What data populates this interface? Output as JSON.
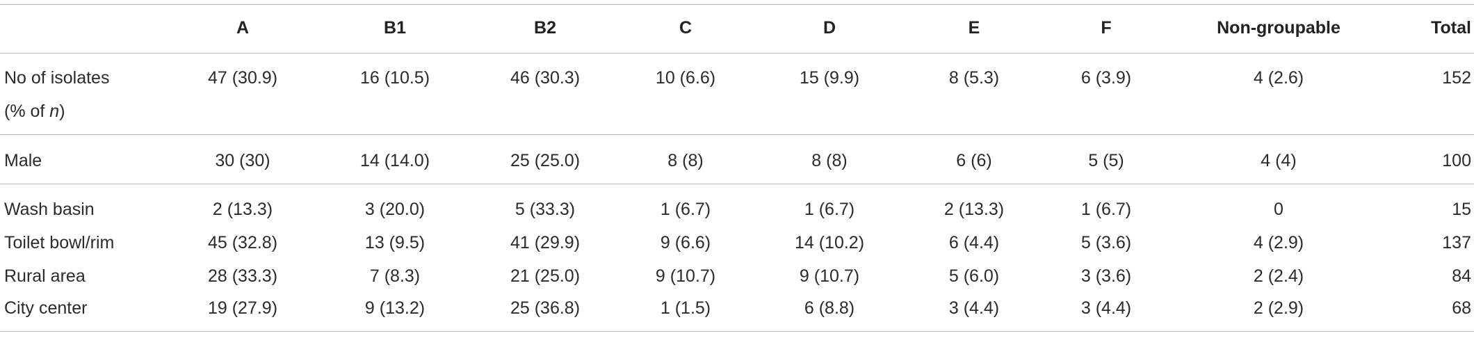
{
  "table": {
    "header": [
      "A",
      "B1",
      "B2",
      "C",
      "D",
      "E",
      "F",
      "Non-groupable",
      "Total"
    ],
    "rows": [
      {
        "label": [
          "No of isolates",
          "(% of ",
          "n",
          ")"
        ],
        "cells": [
          "47 (30.9)",
          "16 (10.5)",
          "46 (30.3)",
          "10 (6.6)",
          "15 (9.9)",
          "8 (5.3)",
          "6 (3.9)",
          "4 (2.6)",
          "152"
        ]
      },
      {
        "label": [
          "Male"
        ],
        "cells": [
          "30 (30)",
          "14 (14.0)",
          "25 (25.0)",
          "8 (8)",
          "8 (8)",
          "6 (6)",
          "5 (5)",
          "4 (4)",
          "100"
        ]
      },
      {
        "label": [
          "Wash basin"
        ],
        "cells": [
          "2 (13.3)",
          "3 (20.0)",
          "5 (33.3)",
          "1 (6.7)",
          "1 (6.7)",
          "2 (13.3)",
          "1 (6.7)",
          "0",
          "15"
        ]
      },
      {
        "label": [
          "Toilet bowl/rim"
        ],
        "cells": [
          "45 (32.8)",
          "13 (9.5)",
          "41 (29.9)",
          "9 (6.6)",
          "14 (10.2)",
          "6 (4.4)",
          "5 (3.6)",
          "4 (2.9)",
          "137"
        ]
      },
      {
        "label": [
          "Rural area"
        ],
        "cells": [
          "28 (33.3)",
          "7 (8.3)",
          "21 (25.0)",
          "9 (10.7)",
          "9 (10.7)",
          "5 (6.0)",
          "3 (3.6)",
          "2 (2.4)",
          "84"
        ]
      },
      {
        "label": [
          "City center"
        ],
        "cells": [
          "19 (27.9)",
          "9 (13.2)",
          "25 (36.8)",
          "1 (1.5)",
          "6 (8.8)",
          "3 (4.4)",
          "3 (4.4)",
          "2 (2.9)",
          "68"
        ]
      }
    ]
  }
}
